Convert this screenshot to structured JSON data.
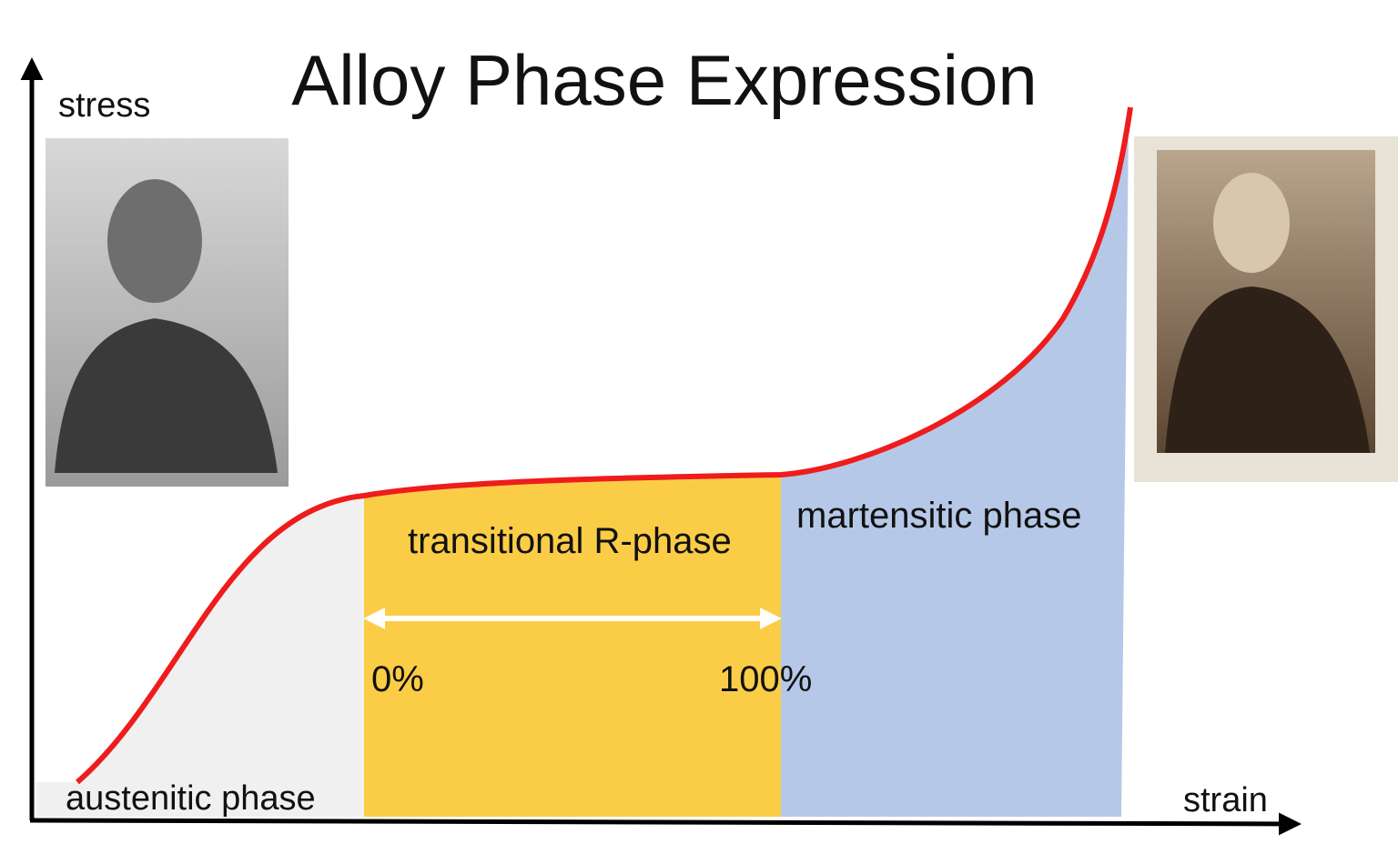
{
  "title": "Alloy Phase Expression",
  "axes": {
    "y_label": "stress",
    "x_label": "strain"
  },
  "regions": [
    {
      "label": "austenitic phase"
    },
    {
      "label": "transitional R-phase"
    },
    {
      "label": "martensitic phase"
    }
  ],
  "range": {
    "start": "0%",
    "end": "100%"
  }
}
